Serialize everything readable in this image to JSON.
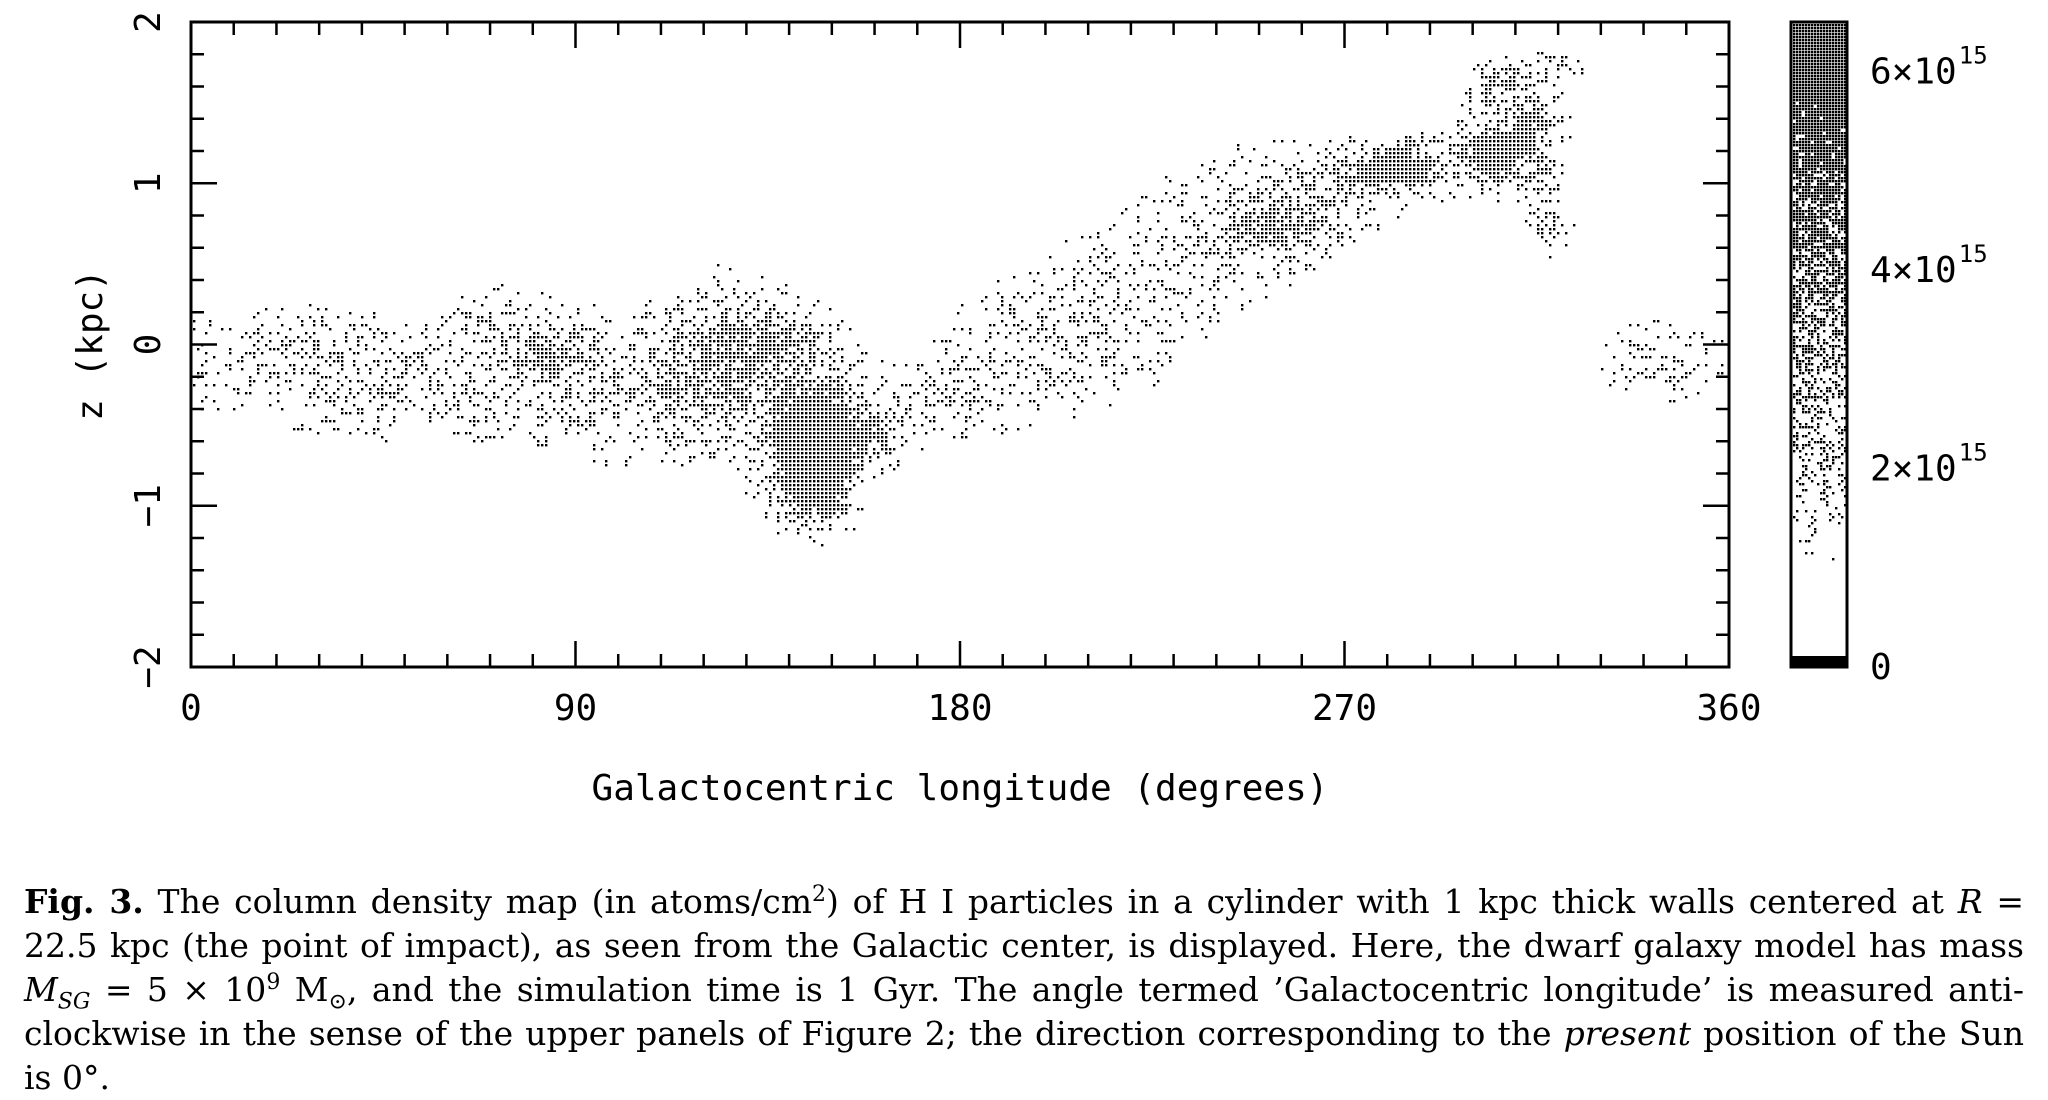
{
  "chart_data": {
    "type": "heatmap",
    "xlabel": "Galactocentric longitude (degrees)",
    "ylabel": "z (kpc)",
    "xlim": [
      0,
      360
    ],
    "ylim": [
      -2,
      2
    ],
    "x_ticks": [
      0,
      90,
      180,
      270,
      360
    ],
    "y_ticks": [
      -2,
      -1,
      0,
      1,
      2
    ],
    "x_tick_labels": [
      "0",
      "90",
      "180",
      "270",
      "360"
    ],
    "y_tick_labels": [
      "−2",
      "−1",
      "0",
      "1",
      "2"
    ],
    "colorbar": {
      "range": [
        0,
        6500000000000000.0
      ],
      "ticks": [
        0,
        2000000000000000.0,
        4000000000000000.0,
        6000000000000000.0
      ],
      "tick_labels": [
        {
          "base": "0",
          "exp": ""
        },
        {
          "base": "2×10",
          "exp": "15"
        },
        {
          "base": "4×10",
          "exp": "15"
        },
        {
          "base": "6×10",
          "exp": "15"
        }
      ]
    },
    "density_clumps": [
      {
        "lon": 5,
        "z": -0.1,
        "slon": 8,
        "sz": 0.2,
        "peak": 800000000000000.0
      },
      {
        "lon": 28,
        "z": 0.0,
        "slon": 10,
        "sz": 0.15,
        "peak": 1500000000000000.0
      },
      {
        "lon": 50,
        "z": -0.25,
        "slon": 22,
        "sz": 0.2,
        "peak": 1600000000000000.0
      },
      {
        "lon": 75,
        "z": 0.05,
        "slon": 12,
        "sz": 0.2,
        "peak": 1200000000000000.0
      },
      {
        "lon": 85,
        "z": -0.05,
        "slon": 7,
        "sz": 0.08,
        "peak": 2800000000000000.0
      },
      {
        "lon": 100,
        "z": -0.3,
        "slon": 15,
        "sz": 0.25,
        "peak": 1600000000000000.0
      },
      {
        "lon": 125,
        "z": -0.15,
        "slon": 10,
        "sz": 0.3,
        "peak": 3500000000000000.0
      },
      {
        "lon": 137,
        "z": 0.05,
        "slon": 8,
        "sz": 0.12,
        "peak": 3000000000000000.0
      },
      {
        "lon": 145,
        "z": -0.55,
        "slon": 7,
        "sz": 0.25,
        "peak": 6500000000000000.0
      },
      {
        "lon": 145,
        "z": -0.85,
        "slon": 5,
        "sz": 0.18,
        "peak": 5500000000000000.0
      },
      {
        "lon": 158,
        "z": -0.55,
        "slon": 6,
        "sz": 0.12,
        "peak": 3500000000000000.0
      },
      {
        "lon": 178,
        "z": -0.3,
        "slon": 12,
        "sz": 0.15,
        "peak": 1400000000000000.0
      },
      {
        "lon": 200,
        "z": -0.05,
        "slon": 15,
        "sz": 0.25,
        "peak": 1200000000000000.0
      },
      {
        "lon": 215,
        "z": 0.25,
        "slon": 15,
        "sz": 0.25,
        "peak": 1200000000000000.0
      },
      {
        "lon": 245,
        "z": 0.75,
        "slon": 15,
        "sz": 0.25,
        "peak": 1800000000000000.0
      },
      {
        "lon": 255,
        "z": 0.75,
        "slon": 8,
        "sz": 0.1,
        "peak": 3000000000000000.0
      },
      {
        "lon": 265,
        "z": 1.0,
        "slon": 10,
        "sz": 0.15,
        "peak": 2000000000000000.0
      },
      {
        "lon": 282,
        "z": 1.1,
        "slon": 7,
        "sz": 0.1,
        "peak": 6500000000000000.0
      },
      {
        "lon": 306,
        "z": 1.2,
        "slon": 6,
        "sz": 0.13,
        "peak": 6500000000000000.0
      },
      {
        "lon": 314,
        "z": 1.4,
        "slon": 4,
        "sz": 0.1,
        "peak": 4000000000000000.0
      },
      {
        "lon": 307,
        "z": 1.62,
        "slon": 5,
        "sz": 0.08,
        "peak": 4000000000000000.0
      },
      {
        "lon": 318,
        "z": 1.75,
        "slon": 5,
        "sz": 0.06,
        "peak": 2500000000000000.0
      },
      {
        "lon": 318,
        "z": 0.75,
        "slon": 3,
        "sz": 0.1,
        "peak": 2500000000000000.0
      },
      {
        "lon": 316,
        "z": 1.0,
        "slon": 3,
        "sz": 0.15,
        "peak": 1500000000000000.0
      },
      {
        "lon": 345,
        "z": -0.1,
        "slon": 10,
        "sz": 0.15,
        "peak": 1500000000000000.0
      }
    ]
  },
  "caption": {
    "label": "Fig. 3.",
    "text_1": " The column density map (in atoms/cm",
    "sup_1": "2",
    "text_2": ") of H I particles in a cylinder with 1 kpc thick walls centered at ",
    "R_sym": "R",
    "text_3": " = 22.5 kpc (the point of impact), as seen from the Galactic center, is displayed. Here, the dwarf galaxy model has mass ",
    "M_sym": "M",
    "M_sub": "SG",
    "text_4": " = 5 × 10",
    "sup_2": "9",
    "text_5": " M",
    "sun_sub": "⊙",
    "text_6": ", and the simulation time is 1 Gyr. The angle termed ’Galactocentric longitude’ is measured anti-clockwise in the sense of the upper panels of Figure 2; the direction corresponding to the ",
    "present": "present",
    "text_7": " position of the Sun is 0°."
  }
}
